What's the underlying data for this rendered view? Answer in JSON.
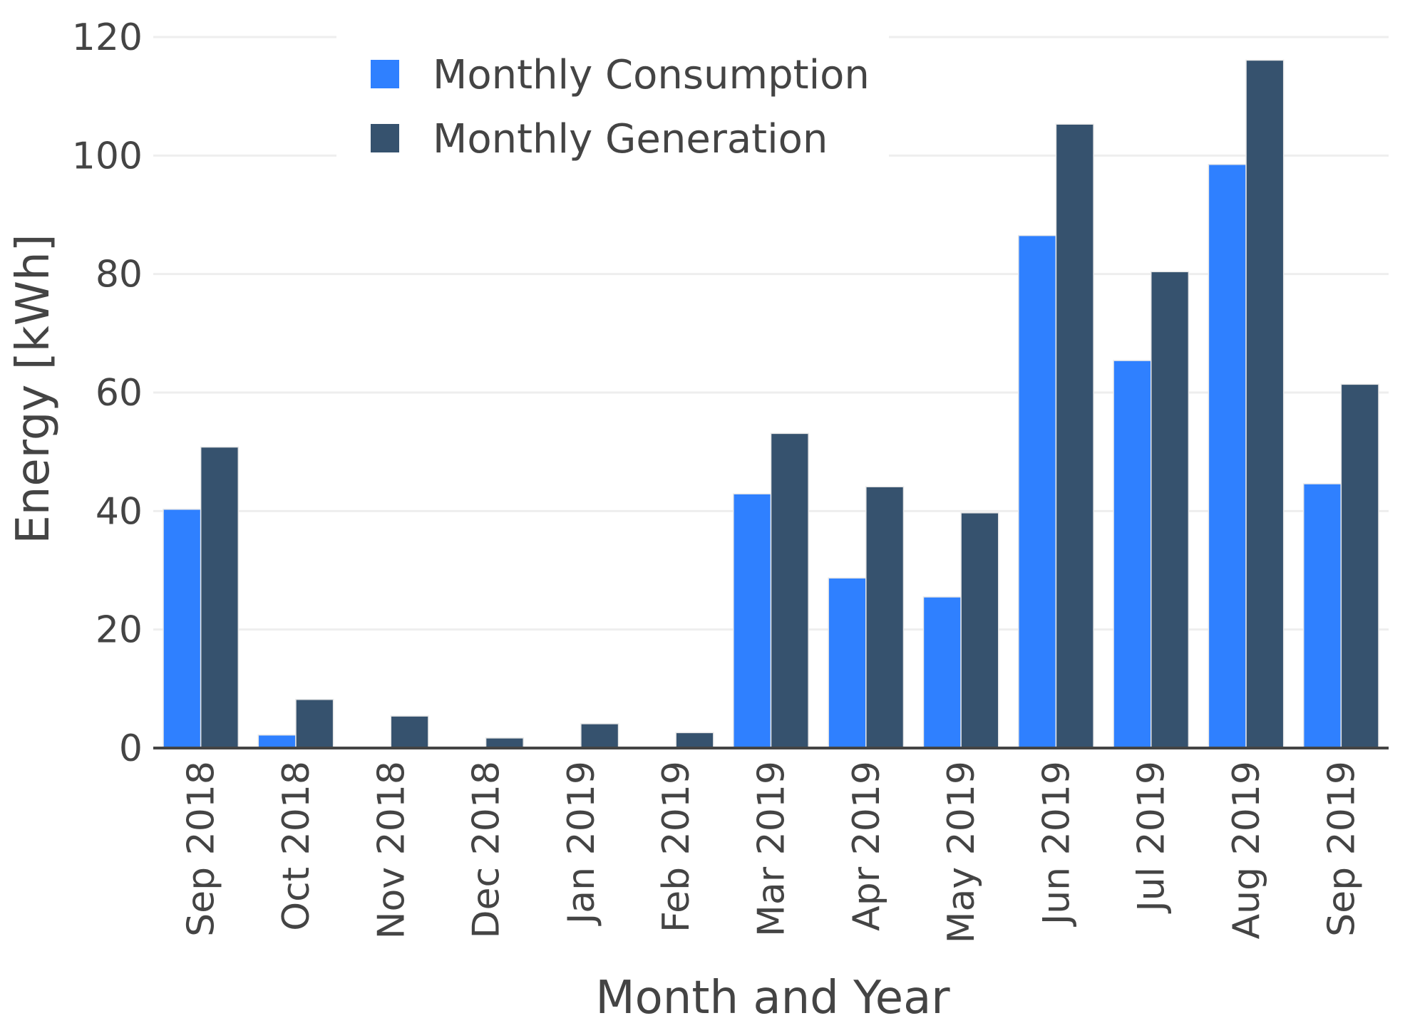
{
  "chart_data": {
    "type": "bar",
    "title": "",
    "xlabel": "Month and Year",
    "ylabel": "Energy [kWh]",
    "ylim": [
      0,
      120
    ],
    "yticks": [
      0,
      20,
      40,
      60,
      80,
      100,
      120
    ],
    "grid": true,
    "legend_position": "top-left",
    "categories": [
      "Sep 2018",
      "Oct 2018",
      "Nov 2018",
      "Dec 2018",
      "Jan 2019",
      "Feb 2019",
      "Mar 2019",
      "Apr 2019",
      "May 2019",
      "Jun 2019",
      "Jul 2019",
      "Aug 2019",
      "Sep 2019"
    ],
    "series": [
      {
        "name": "Monthly Consumption",
        "color": "#2f80ff",
        "values": [
          40.3,
          2.2,
          0,
          0,
          0,
          0,
          42.9,
          28.7,
          25.5,
          86.5,
          65.4,
          98.5,
          44.6
        ]
      },
      {
        "name": "Monthly Generation",
        "color": "#36526e",
        "values": [
          50.8,
          8.2,
          5.4,
          1.7,
          4.1,
          2.6,
          53.1,
          44.1,
          39.7,
          105.3,
          80.4,
          116.1,
          61.4
        ]
      }
    ]
  }
}
